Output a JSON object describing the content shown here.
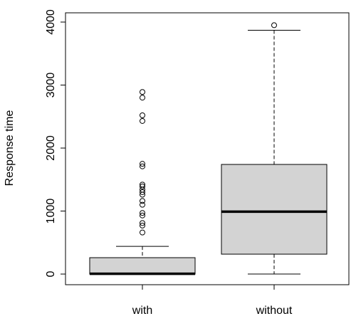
{
  "chart_data": {
    "type": "box",
    "y_label": "Response time",
    "categories": [
      "with",
      "without"
    ],
    "boxes": [
      {
        "low": 0,
        "q1": 0,
        "median": 5,
        "q3": 260,
        "high": 440,
        "outliers": [
          2890,
          2800,
          2520,
          2430,
          1750,
          1710,
          1420,
          1390,
          1340,
          1300,
          1260,
          1160,
          1100,
          970,
          930,
          810,
          770,
          660
        ]
      },
      {
        "low": 0,
        "q1": 316,
        "median": 990,
        "q3": 1740,
        "high": 3870,
        "outliers": [
          3950
        ]
      }
    ],
    "color": "#d3d3d3",
    "ylim": [
      -169,
      4147
    ],
    "yticks": [
      0,
      1000,
      2000,
      3000,
      4000
    ]
  }
}
